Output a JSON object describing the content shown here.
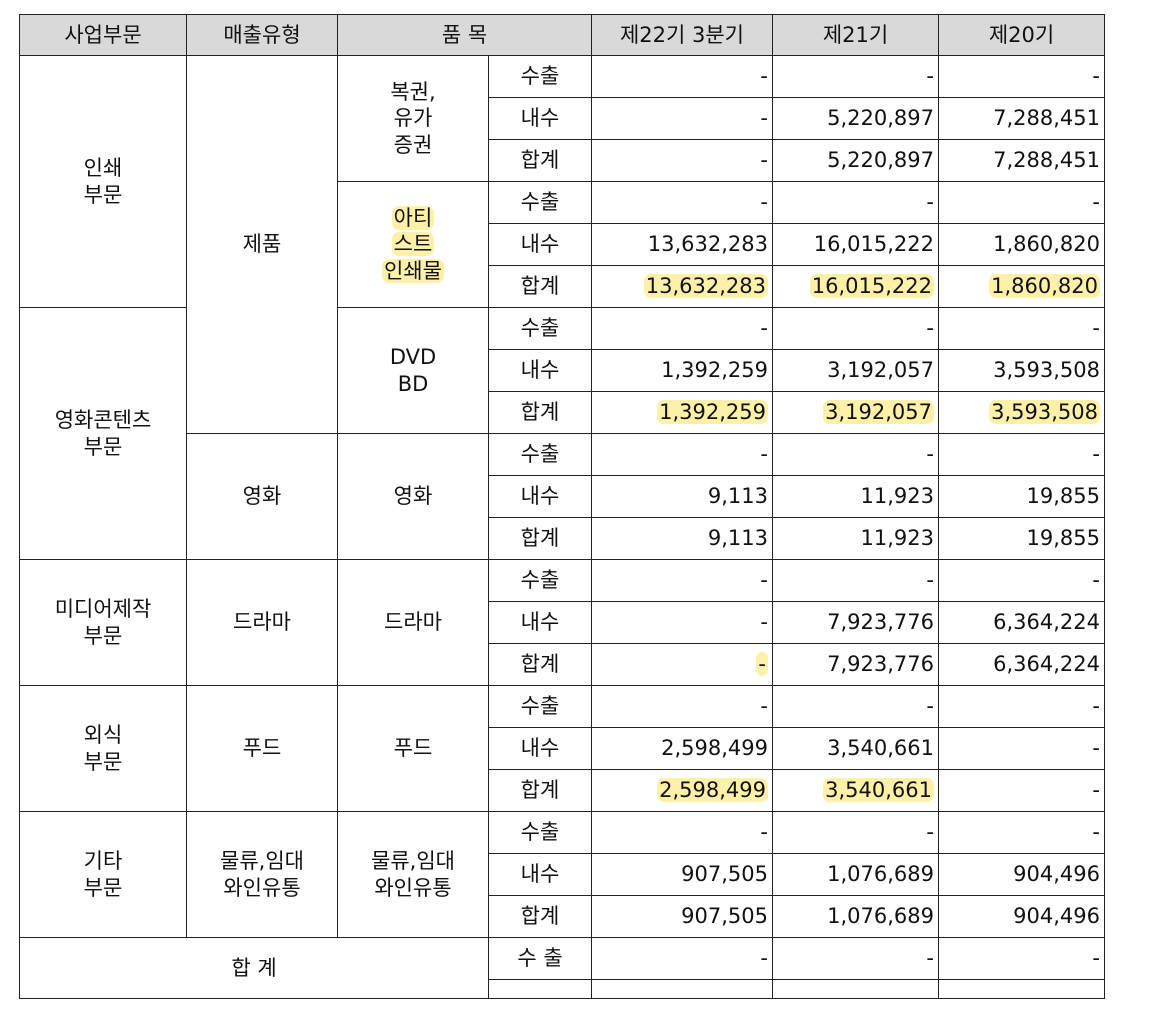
{
  "headers": {
    "segment": "사업부문",
    "sales_type": "매출유형",
    "item": "품 목",
    "p22": "제22기 3분기",
    "p21": "제21기",
    "p20": "제20기"
  },
  "labels": {
    "export": "수출",
    "domestic": "내수",
    "subtotal": "합계",
    "total_export": "수 출"
  },
  "segments": {
    "printing": [
      "인쇄",
      "부문"
    ],
    "film": [
      "영화콘텐츠",
      "부문"
    ],
    "media": [
      "미디어제작",
      "부문"
    ],
    "food": [
      "외식",
      "부문"
    ],
    "etc": [
      "기타",
      "부문"
    ],
    "total": "합 계"
  },
  "sales_types": {
    "product": "제품",
    "film": "영화",
    "drama": "드라마",
    "food": "푸드",
    "etc": [
      "물류,임대",
      "와인유통"
    ]
  },
  "items": {
    "securities": [
      "복권,",
      "유가",
      "증권"
    ],
    "art": [
      "아티",
      "스트",
      "인쇄물"
    ],
    "dvd": [
      "DVD",
      "BD"
    ],
    "film": "영화",
    "drama": "드라마",
    "food": "푸드",
    "etc": [
      "물류,임대",
      "와인유통"
    ]
  },
  "rows": {
    "sec_export": [
      "-",
      "-",
      "-"
    ],
    "sec_domestic": [
      "-",
      "5,220,897",
      "7,288,451"
    ],
    "sec_total": [
      "-",
      "5,220,897",
      "7,288,451"
    ],
    "art_export": [
      "-",
      "-",
      "-"
    ],
    "art_domestic": [
      "13,632,283",
      "16,015,222",
      "1,860,820"
    ],
    "art_total": [
      "13,632,283",
      "16,015,222",
      "1,860,820"
    ],
    "dvd_export": [
      "-",
      "-",
      "-"
    ],
    "dvd_domestic": [
      "1,392,259",
      "3,192,057",
      "3,593,508"
    ],
    "dvd_total": [
      "1,392,259",
      "3,192,057",
      "3,593,508"
    ],
    "film_export": [
      "-",
      "-",
      "-"
    ],
    "film_domestic": [
      "9,113",
      "11,923",
      "19,855"
    ],
    "film_total": [
      "9,113",
      "11,923",
      "19,855"
    ],
    "drama_export": [
      "-",
      "-",
      "-"
    ],
    "drama_domestic": [
      "-",
      "7,923,776",
      "6,364,224"
    ],
    "drama_total": [
      "-",
      "7,923,776",
      "6,364,224"
    ],
    "food_export": [
      "-",
      "-",
      "-"
    ],
    "food_domestic": [
      "2,598,499",
      "3,540,661",
      "-"
    ],
    "food_total": [
      "2,598,499",
      "3,540,661",
      "-"
    ],
    "etc_export": [
      "-",
      "-",
      "-"
    ],
    "etc_domestic": [
      "907,505",
      "1,076,689",
      "904,496"
    ],
    "etc_total": [
      "907,505",
      "1,076,689",
      "904,496"
    ],
    "grand_export": [
      "-",
      "-",
      "-"
    ]
  }
}
